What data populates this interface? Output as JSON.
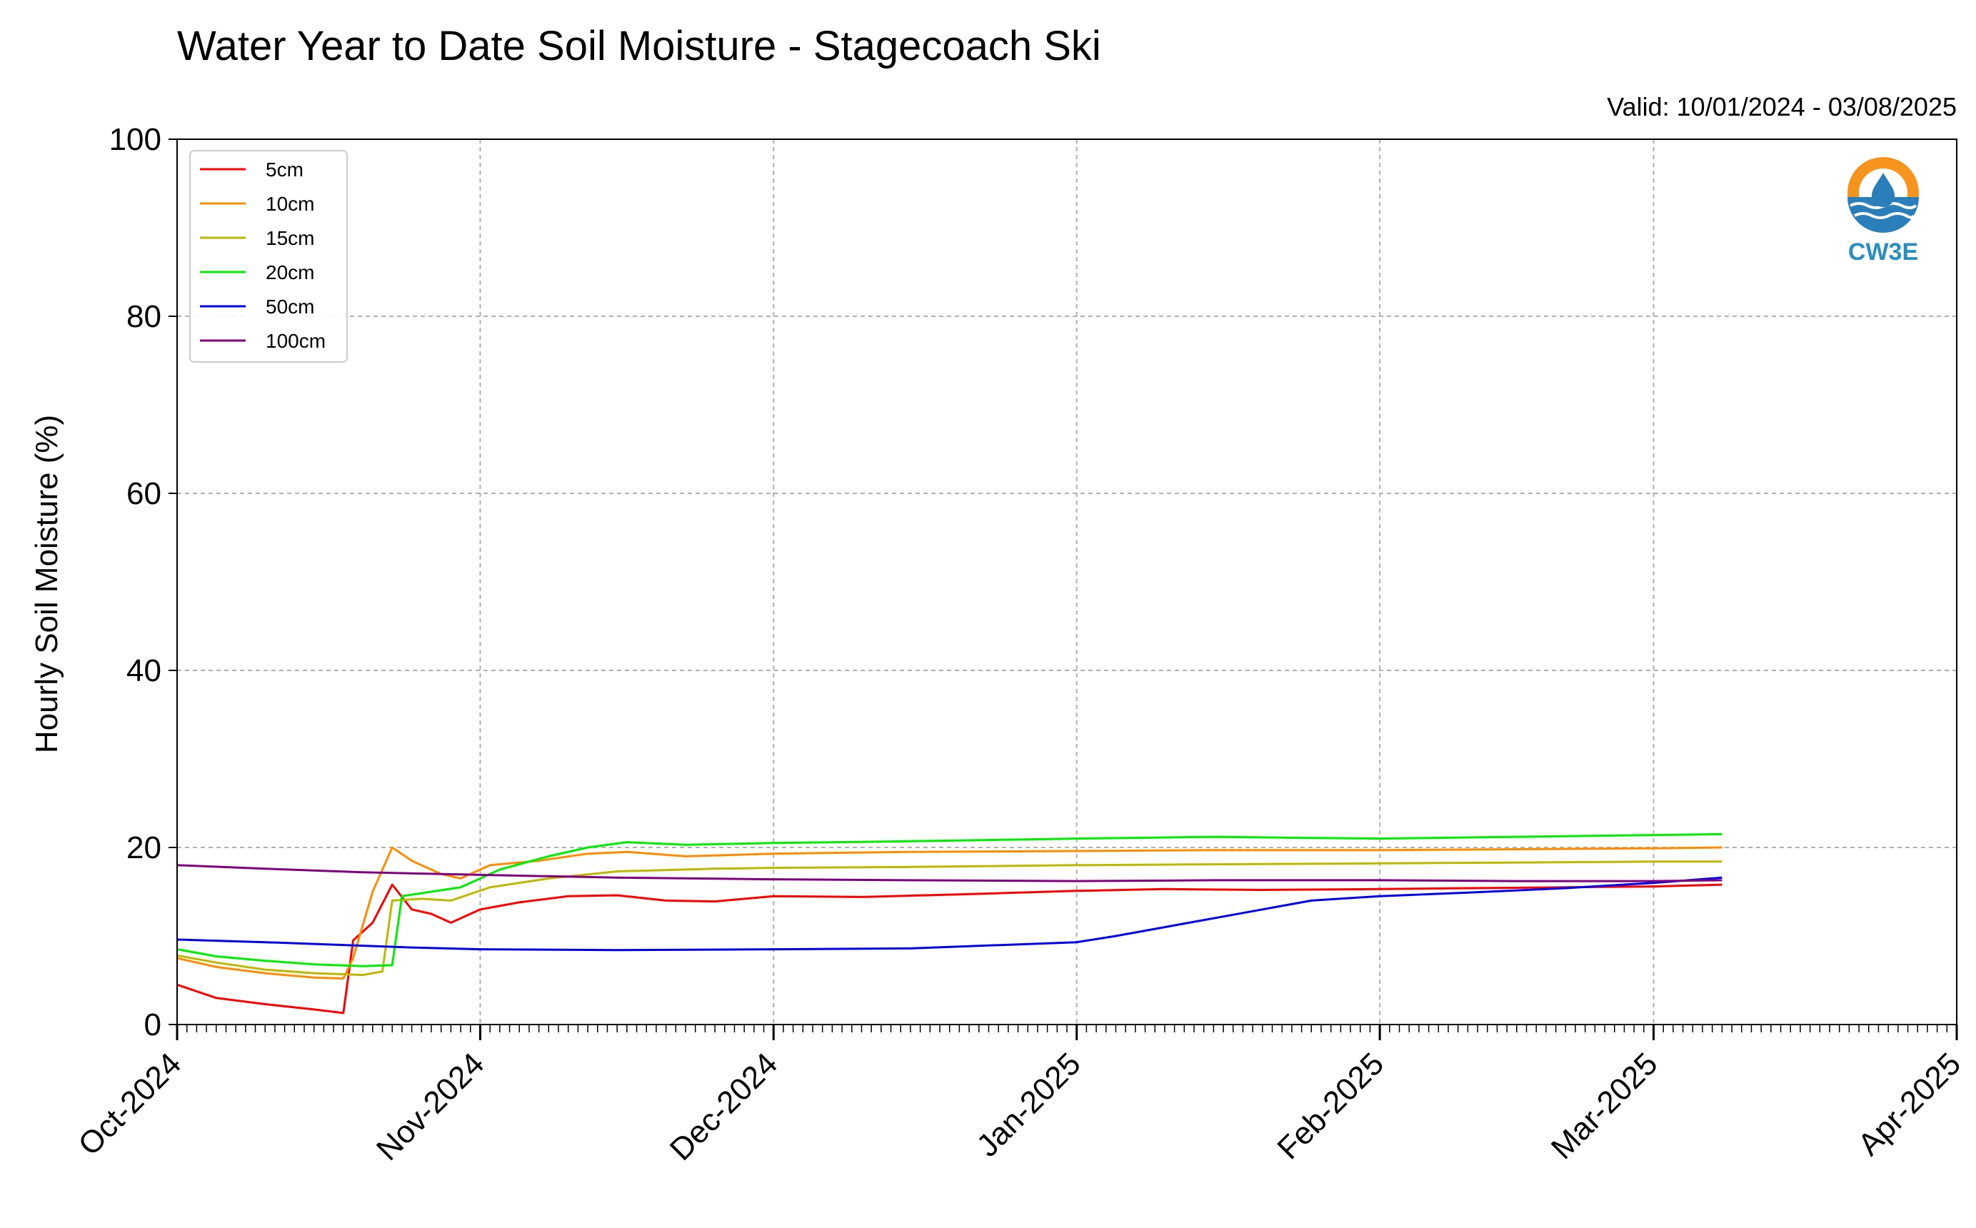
{
  "chart_data": {
    "type": "line",
    "title": "Water Year to Date Soil Moisture - Stagecoach Ski",
    "subtitle": "Valid: 10/01/2024 - 03/08/2025",
    "ylabel": "Hourly Soil Moisture (%)",
    "xlabel": "",
    "ylim": [
      0,
      100
    ],
    "xlim": [
      "2024-10-01",
      "2025-04-01"
    ],
    "yticks": [
      "0",
      "20",
      "40",
      "60",
      "80",
      "100"
    ],
    "xticks": [
      {
        "date": "2024-10-01",
        "label": "Oct-2024"
      },
      {
        "date": "2024-11-01",
        "label": "Nov-2024"
      },
      {
        "date": "2024-12-01",
        "label": "Dec-2024"
      },
      {
        "date": "2025-01-01",
        "label": "Jan-2025"
      },
      {
        "date": "2025-02-01",
        "label": "Feb-2025"
      },
      {
        "date": "2025-03-01",
        "label": "Mar-2025"
      },
      {
        "date": "2025-04-01",
        "label": "Apr-2025"
      }
    ],
    "grid": true,
    "legend_position": "top-left",
    "logo_text": "CW3E",
    "series": [
      {
        "name": "5cm",
        "color": "#ff0000",
        "x": [
          "2024-10-01",
          "2024-10-05",
          "2024-10-10",
          "2024-10-15",
          "2024-10-18",
          "2024-10-19",
          "2024-10-21",
          "2024-10-23",
          "2024-10-25",
          "2024-10-27",
          "2024-10-29",
          "2024-11-01",
          "2024-11-05",
          "2024-11-10",
          "2024-11-15",
          "2024-11-20",
          "2024-11-25",
          "2024-12-01",
          "2024-12-10",
          "2024-12-20",
          "2025-01-01",
          "2025-01-10",
          "2025-01-20",
          "2025-02-01",
          "2025-02-10",
          "2025-02-20",
          "2025-03-01",
          "2025-03-08"
        ],
        "values": [
          4.5,
          3.0,
          2.3,
          1.7,
          1.3,
          9.5,
          11.5,
          15.8,
          13.0,
          12.5,
          11.5,
          13.0,
          13.8,
          14.5,
          14.6,
          14.0,
          13.9,
          14.5,
          14.4,
          14.7,
          15.1,
          15.3,
          15.2,
          15.3,
          15.4,
          15.5,
          15.6,
          15.8
        ]
      },
      {
        "name": "10cm",
        "color": "#ff8c00",
        "x": [
          "2024-10-01",
          "2024-10-05",
          "2024-10-10",
          "2024-10-15",
          "2024-10-18",
          "2024-10-19",
          "2024-10-21",
          "2024-10-23",
          "2024-10-25",
          "2024-10-28",
          "2024-10-30",
          "2024-11-02",
          "2024-11-07",
          "2024-11-12",
          "2024-11-16",
          "2024-11-22",
          "2024-12-01",
          "2024-12-15",
          "2025-01-01",
          "2025-01-15",
          "2025-02-01",
          "2025-02-15",
          "2025-03-01",
          "2025-03-08"
        ],
        "values": [
          7.5,
          6.5,
          5.8,
          5.3,
          5.2,
          7.5,
          15.0,
          20.0,
          18.5,
          17.0,
          16.5,
          18.0,
          18.5,
          19.3,
          19.5,
          19.0,
          19.3,
          19.5,
          19.6,
          19.7,
          19.7,
          19.8,
          19.9,
          20.0
        ]
      },
      {
        "name": "15cm",
        "color": "#bdb800",
        "x": [
          "2024-10-01",
          "2024-10-05",
          "2024-10-10",
          "2024-10-15",
          "2024-10-20",
          "2024-10-22",
          "2024-10-23",
          "2024-10-26",
          "2024-10-29",
          "2024-11-02",
          "2024-11-08",
          "2024-11-15",
          "2024-11-25",
          "2024-12-01",
          "2024-12-15",
          "2025-01-01",
          "2025-01-15",
          "2025-02-01",
          "2025-02-15",
          "2025-03-01",
          "2025-03-08"
        ],
        "values": [
          7.8,
          7.0,
          6.2,
          5.8,
          5.6,
          6.0,
          14.0,
          14.2,
          14.0,
          15.5,
          16.5,
          17.3,
          17.6,
          17.7,
          17.8,
          18.0,
          18.1,
          18.2,
          18.3,
          18.4,
          18.4
        ]
      },
      {
        "name": "20cm",
        "color": "#00ee00",
        "x": [
          "2024-10-01",
          "2024-10-05",
          "2024-10-10",
          "2024-10-15",
          "2024-10-20",
          "2024-10-23",
          "2024-10-24",
          "2024-10-27",
          "2024-10-30",
          "2024-11-03",
          "2024-11-08",
          "2024-11-12",
          "2024-11-16",
          "2024-11-22",
          "2024-12-01",
          "2024-12-15",
          "2025-01-01",
          "2025-01-15",
          "2025-02-01",
          "2025-02-15",
          "2025-03-01",
          "2025-03-08"
        ],
        "values": [
          8.5,
          7.7,
          7.2,
          6.8,
          6.6,
          6.7,
          14.5,
          15.0,
          15.5,
          17.5,
          19.0,
          20.0,
          20.6,
          20.3,
          20.5,
          20.7,
          21.0,
          21.2,
          21.0,
          21.2,
          21.4,
          21.5
        ]
      },
      {
        "name": "50cm",
        "color": "#0000ee",
        "x": [
          "2024-10-01",
          "2024-10-10",
          "2024-10-20",
          "2024-10-25",
          "2024-11-01",
          "2024-11-15",
          "2024-12-01",
          "2024-12-15",
          "2025-01-01",
          "2025-01-05",
          "2025-01-10",
          "2025-01-15",
          "2025-01-20",
          "2025-01-25",
          "2025-02-01",
          "2025-02-10",
          "2025-02-20",
          "2025-03-01",
          "2025-03-08"
        ],
        "values": [
          9.6,
          9.3,
          8.9,
          8.7,
          8.5,
          8.4,
          8.5,
          8.6,
          9.3,
          10.0,
          11.0,
          12.0,
          13.0,
          14.0,
          14.5,
          14.9,
          15.4,
          16.0,
          16.6
        ]
      },
      {
        "name": "100cm",
        "color": "#800080",
        "x": [
          "2024-10-01",
          "2024-10-10",
          "2024-10-20",
          "2024-11-01",
          "2024-11-15",
          "2024-12-01",
          "2024-12-15",
          "2025-01-01",
          "2025-01-15",
          "2025-02-01",
          "2025-02-15",
          "2025-03-01",
          "2025-03-08"
        ],
        "values": [
          18.0,
          17.6,
          17.2,
          16.9,
          16.6,
          16.4,
          16.3,
          16.2,
          16.3,
          16.3,
          16.2,
          16.2,
          16.3
        ]
      }
    ]
  }
}
